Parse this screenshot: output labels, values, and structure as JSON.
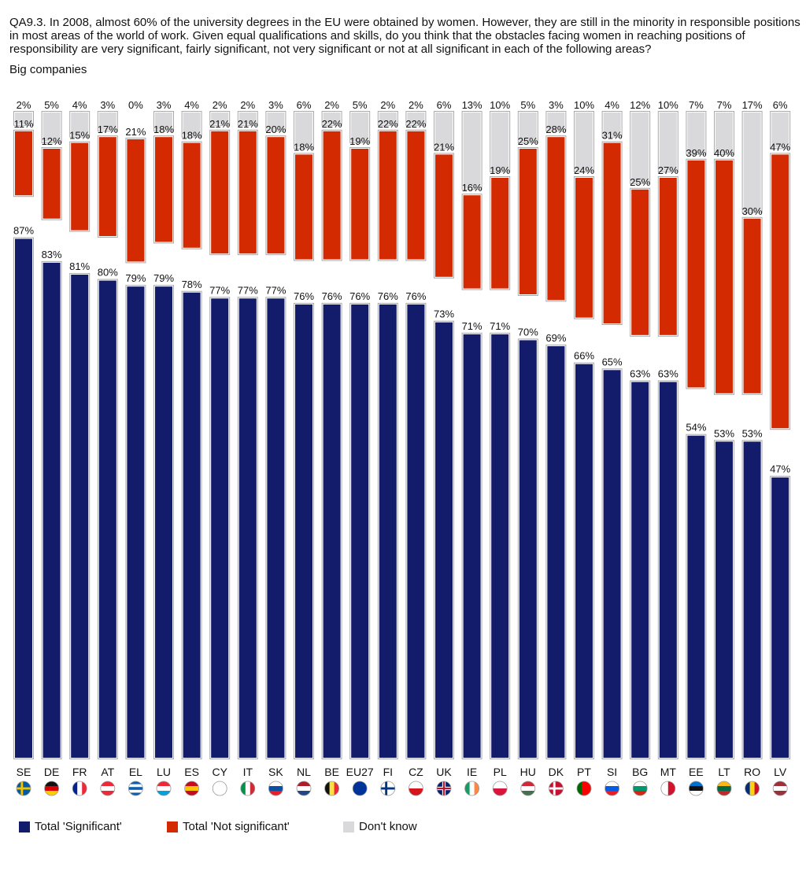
{
  "question": "QA9.3. In 2008, almost 60% of the university degrees in the EU were obtained by women. However, they are still in the minority in responsible positions in most areas of the world of work. Given equal qualifications and skills, do you think that the obstacles facing women in reaching positions of responsibility are very significant, fairly significant, not very significant or not at all significant in each of the following areas?",
  "subtitle": "Big companies",
  "colors": {
    "significant": "#131b6b",
    "not_significant": "#d42a02",
    "dont_know": "#d9d9dc"
  },
  "legend": {
    "significant": "Total 'Significant'",
    "not_significant": "Total 'Not significant'",
    "dont_know": "Don't know"
  },
  "chart_data": {
    "type": "bar",
    "title": "Big companies",
    "categories": [
      "SE",
      "DE",
      "FR",
      "AT",
      "EL",
      "LU",
      "ES",
      "CY",
      "IT",
      "SK",
      "NL",
      "BE",
      "EU27",
      "FI",
      "CZ",
      "UK",
      "IE",
      "PL",
      "HU",
      "DK",
      "PT",
      "SI",
      "BG",
      "MT",
      "EE",
      "LT",
      "RO",
      "LV"
    ],
    "series": [
      {
        "name": "Total 'Significant'",
        "values": [
          87,
          83,
          81,
          80,
          79,
          79,
          78,
          77,
          77,
          77,
          76,
          76,
          76,
          76,
          76,
          73,
          71,
          71,
          70,
          69,
          66,
          65,
          63,
          63,
          54,
          53,
          53,
          47
        ]
      },
      {
        "name": "Total 'Not significant'",
        "values": [
          11,
          12,
          15,
          17,
          21,
          18,
          18,
          21,
          21,
          20,
          18,
          22,
          19,
          22,
          22,
          21,
          16,
          19,
          25,
          28,
          24,
          31,
          25,
          27,
          39,
          40,
          30,
          47
        ]
      },
      {
        "name": "Don't know",
        "values": [
          2,
          5,
          4,
          3,
          0,
          3,
          4,
          2,
          2,
          3,
          6,
          2,
          5,
          2,
          2,
          6,
          13,
          10,
          5,
          3,
          10,
          4,
          12,
          10,
          7,
          7,
          17,
          6
        ]
      }
    ],
    "value_suffix": "%",
    "ylim": [
      0,
      100
    ],
    "legend_position": "bottom",
    "grid": false,
    "flags": [
      {
        "colors": [
          "#005ba6",
          "#f5c400"
        ],
        "type": "nordic"
      },
      {
        "colors": [
          "#111111",
          "#dd0000",
          "#ffce00"
        ],
        "type": "hstripes"
      },
      {
        "colors": [
          "#002395",
          "#ffffff",
          "#ed2939"
        ],
        "type": "vstripes"
      },
      {
        "colors": [
          "#ed2939",
          "#ffffff",
          "#ed2939"
        ],
        "type": "hstripes"
      },
      {
        "colors": [
          "#0d5eaf",
          "#ffffff",
          "#0d5eaf",
          "#ffffff",
          "#0d5eaf"
        ],
        "type": "hstripes"
      },
      {
        "colors": [
          "#ed2939",
          "#ffffff",
          "#00a1de"
        ],
        "type": "hstripes"
      },
      {
        "colors": [
          "#c60b1e",
          "#ffc400",
          "#c60b1e"
        ],
        "type": "hstripes"
      },
      {
        "colors": [
          "#ffffff",
          "#ffffff",
          "#ffffff"
        ],
        "type": "hstripes"
      },
      {
        "colors": [
          "#009246",
          "#ffffff",
          "#ce2b37"
        ],
        "type": "vstripes"
      },
      {
        "colors": [
          "#ffffff",
          "#0b4ea2",
          "#ee1c25"
        ],
        "type": "hstripes"
      },
      {
        "colors": [
          "#ae1c28",
          "#ffffff",
          "#21468b"
        ],
        "type": "hstripes"
      },
      {
        "colors": [
          "#111111",
          "#fae042",
          "#ed2939"
        ],
        "type": "vstripes"
      },
      {
        "colors": [
          "#003399"
        ],
        "type": "solid"
      },
      {
        "colors": [
          "#ffffff",
          "#003580"
        ],
        "type": "nordic"
      },
      {
        "colors": [
          "#ffffff",
          "#d7141a"
        ],
        "type": "hstripes"
      },
      {
        "colors": [
          "#012169",
          "#ffffff",
          "#c8102e"
        ],
        "type": "cross"
      },
      {
        "colors": [
          "#169b62",
          "#ffffff",
          "#ff883e"
        ],
        "type": "vstripes"
      },
      {
        "colors": [
          "#ffffff",
          "#dc143c"
        ],
        "type": "hstripes"
      },
      {
        "colors": [
          "#ce2939",
          "#ffffff",
          "#477050"
        ],
        "type": "hstripes"
      },
      {
        "colors": [
          "#c8102e",
          "#ffffff"
        ],
        "type": "nordic"
      },
      {
        "colors": [
          "#006600",
          "#ff0000",
          "#ff0000"
        ],
        "type": "vstripes"
      },
      {
        "colors": [
          "#ffffff",
          "#005ce5",
          "#ed1c24"
        ],
        "type": "hstripes"
      },
      {
        "colors": [
          "#ffffff",
          "#00966e",
          "#d62612"
        ],
        "type": "hstripes"
      },
      {
        "colors": [
          "#ffffff",
          "#cf142b"
        ],
        "type": "vstripes"
      },
      {
        "colors": [
          "#0072ce",
          "#111111",
          "#ffffff"
        ],
        "type": "hstripes"
      },
      {
        "colors": [
          "#fdb913",
          "#006a44",
          "#c1272d"
        ],
        "type": "hstripes"
      },
      {
        "colors": [
          "#002b7f",
          "#fcd116",
          "#ce1126"
        ],
        "type": "vstripes"
      },
      {
        "colors": [
          "#9e3039",
          "#ffffff",
          "#9e3039"
        ],
        "type": "hstripes"
      }
    ]
  }
}
